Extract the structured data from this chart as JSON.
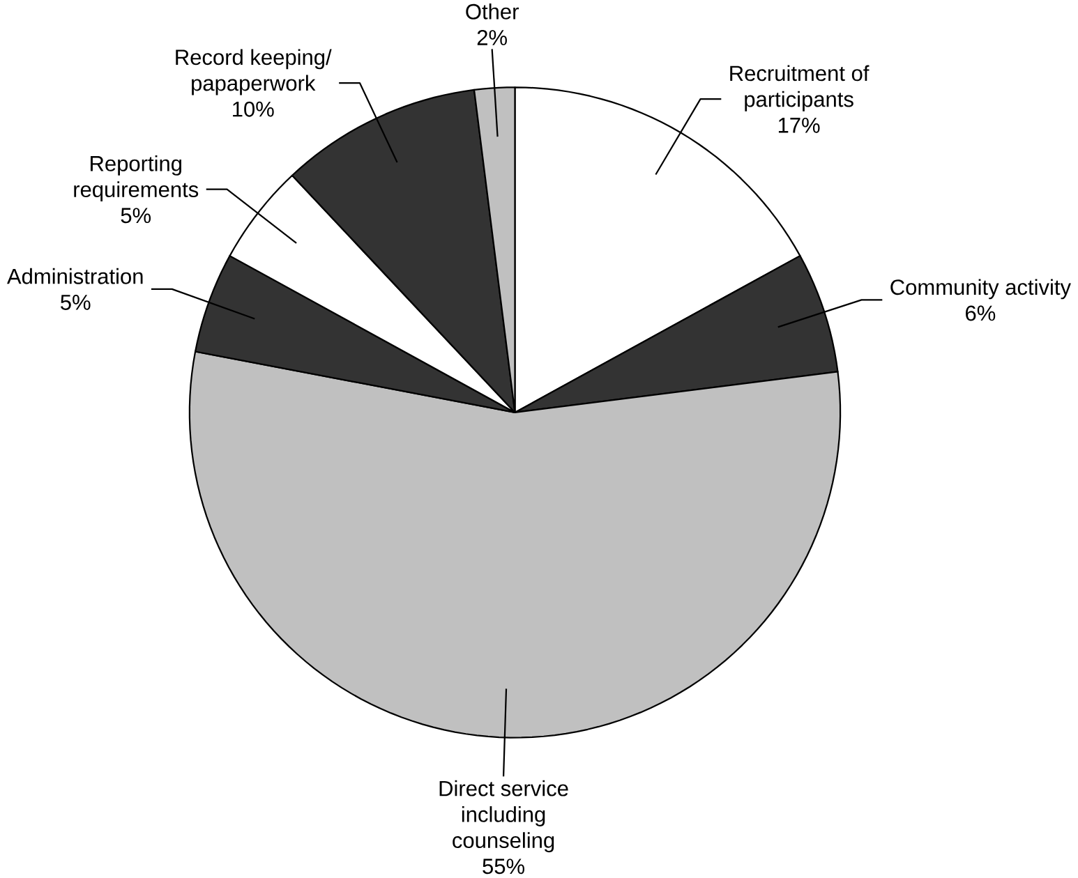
{
  "chart_data": {
    "type": "pie",
    "categories": [
      "Recruitment of participants",
      "Community activity",
      "Direct service including counseling",
      "Administration",
      "Reporting requirements",
      "Record keeping/ papaperwork",
      "Other"
    ],
    "values": [
      17,
      6,
      55,
      5,
      5,
      10,
      2
    ],
    "value_labels": [
      "17%",
      "6%",
      "55%",
      "5%",
      "5%",
      "10%",
      "2%"
    ],
    "colors": [
      "#ffffff",
      "#333333",
      "#c0c0c0",
      "#333333",
      "#ffffff",
      "#333333",
      "#c0c0c0"
    ]
  }
}
